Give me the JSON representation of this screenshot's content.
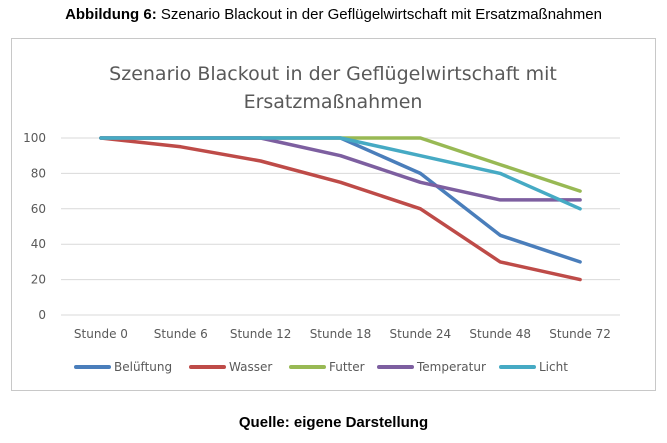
{
  "caption": {
    "prefix": "Abbildung 6",
    "text": " Szenario Blackout in der Geflügelwirtschaft mit Ersatzmaßnahmen"
  },
  "source": "Quelle: eigene Darstellung",
  "chart_data": {
    "type": "line",
    "title_line1": "Szenario Blackout in der Geflügelwirtschaft mit",
    "title_line2": "Ersatzmaßnahmen",
    "categories": [
      "Stunde 0",
      "Stunde 6",
      "Stunde 12",
      "Stunde 18",
      "Stunde 24",
      "Stunde 48",
      "Stunde 72"
    ],
    "ylim": [
      0,
      100
    ],
    "yticks": [
      "0",
      "20",
      "40",
      "60",
      "80",
      "100"
    ],
    "grid": true,
    "legend_position": "bottom",
    "series": [
      {
        "name": "Belüftung",
        "color": "#4a7ebb",
        "values": [
          100,
          100,
          100,
          100,
          80,
          45,
          30
        ]
      },
      {
        "name": "Wasser",
        "color": "#be4b48",
        "values": [
          100,
          95,
          87,
          75,
          60,
          30,
          20
        ]
      },
      {
        "name": "Futter",
        "color": "#98b954",
        "values": [
          100,
          100,
          100,
          100,
          100,
          85,
          70
        ]
      },
      {
        "name": "Temperatur",
        "color": "#7d5fa0",
        "values": [
          100,
          100,
          100,
          90,
          75,
          65,
          65
        ]
      },
      {
        "name": "Licht",
        "color": "#46aac4",
        "values": [
          100,
          100,
          100,
          100,
          90,
          80,
          60
        ]
      }
    ]
  }
}
